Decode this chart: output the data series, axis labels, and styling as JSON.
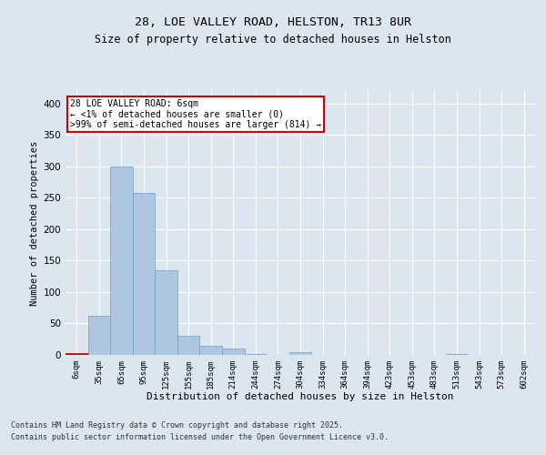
{
  "title1": "28, LOE VALLEY ROAD, HELSTON, TR13 8UR",
  "title2": "Size of property relative to detached houses in Helston",
  "xlabel": "Distribution of detached houses by size in Helston",
  "ylabel": "Number of detached properties",
  "categories": [
    "6sqm",
    "35sqm",
    "65sqm",
    "95sqm",
    "125sqm",
    "155sqm",
    "185sqm",
    "214sqm",
    "244sqm",
    "274sqm",
    "304sqm",
    "334sqm",
    "364sqm",
    "394sqm",
    "423sqm",
    "453sqm",
    "483sqm",
    "513sqm",
    "543sqm",
    "573sqm",
    "602sqm"
  ],
  "values": [
    2,
    62,
    300,
    258,
    135,
    30,
    15,
    10,
    1,
    0,
    5,
    0,
    0,
    0,
    0,
    0,
    0,
    2,
    0,
    0,
    0
  ],
  "bar_color": "#aec6e0",
  "bar_edge_color": "#6ca0c8",
  "highlight_bar_index": 0,
  "highlight_color": "#cc0000",
  "background_color": "#dce6f1",
  "plot_bg_color": "#dce6f1",
  "grid_color": "#ffffff",
  "annotation_text": "28 LOE VALLEY ROAD: 6sqm\n← <1% of detached houses are smaller (0)\n>99% of semi-detached houses are larger (814) →",
  "annotation_box_color": "#cc0000",
  "footer1": "Contains HM Land Registry data © Crown copyright and database right 2025.",
  "footer2": "Contains public sector information licensed under the Open Government Licence v3.0.",
  "ylim": [
    0,
    420
  ],
  "yticks": [
    0,
    50,
    100,
    150,
    200,
    250,
    300,
    350,
    400
  ]
}
